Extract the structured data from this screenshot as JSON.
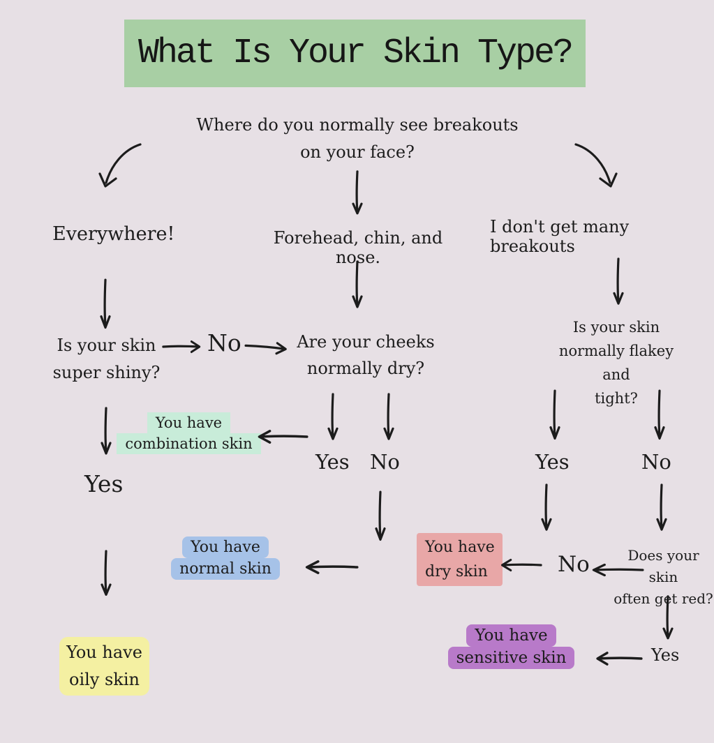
{
  "title": {
    "text": "What Is Your Skin Type?"
  },
  "colors": {
    "background": "#e7e0e5",
    "title_bg": "#a8cfa4",
    "ink": "#1c1c1c",
    "combination": "#c8ecd9",
    "normal": "#a6c2e8",
    "dry": "#e8a7a7",
    "oily": "#f4f0a2",
    "sensitive": "#b87ac9"
  },
  "root_question": {
    "lines": [
      "Where do you normally see breakouts",
      "on your face?"
    ]
  },
  "branch_labels": {
    "everywhere": "Everywhere!",
    "tzone": "Forehead, chin, and nose.",
    "few": "I don't get many breakouts"
  },
  "questions": {
    "shiny": {
      "lines": [
        "Is your skin",
        "super shiny?"
      ]
    },
    "cheeks": {
      "lines": [
        "Are your cheeks",
        "normally dry?"
      ]
    },
    "flakey": {
      "lines": [
        "Is your skin",
        "normally flakey and",
        "tight?"
      ]
    },
    "red": {
      "lines": [
        "Does your skin",
        "often get red?"
      ]
    }
  },
  "answers": {
    "shiny_no": "No",
    "shiny_yes": "Yes",
    "cheeks_yes": "Yes",
    "cheeks_no": "No",
    "flakey_yes": "Yes",
    "flakey_no": "No",
    "red_no": "No",
    "red_yes": "Yes"
  },
  "results": {
    "combination": {
      "lines": [
        "You have",
        "combination skin"
      ]
    },
    "normal": {
      "lines": [
        "You have",
        "normal skin"
      ]
    },
    "dry": {
      "lines": [
        "You have",
        "dry skin"
      ]
    },
    "oily": {
      "lines": [
        "You have",
        "oily skin"
      ]
    },
    "sensitive": {
      "lines": [
        "You have",
        "sensitive skin"
      ]
    }
  }
}
